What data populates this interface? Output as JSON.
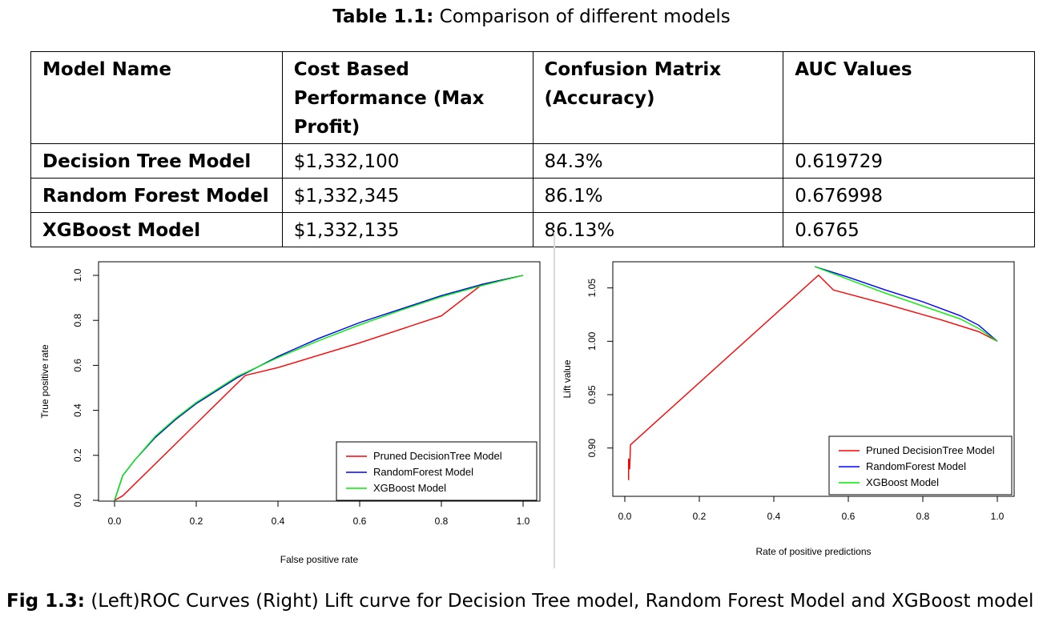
{
  "table": {
    "caption_label": "Table 1.1:",
    "caption_text": "Comparison of different models",
    "headers": [
      "Model Name",
      "Cost Based Performance (Max Profit)",
      "Confusion Matrix (Accuracy)",
      "AUC Values"
    ],
    "rows": [
      [
        "Decision Tree Model",
        "$1,332,100",
        "84.3%",
        "0.619729"
      ],
      [
        "Random Forest Model",
        "$1,332,345",
        "86.1%",
        "0.676998"
      ],
      [
        "XGBoost Model",
        "$1,332,135",
        "86.13%",
        "0.6765"
      ]
    ]
  },
  "figure": {
    "caption_label": "Fig 1.3:",
    "caption_text": "(Left)ROC Curves (Right) Lift curve for Decision Tree model, Random Forest Model and XGBoost model"
  },
  "chart_data": [
    {
      "type": "line",
      "title": "",
      "xlabel": "False positive rate",
      "ylabel": "True positive rate",
      "xlim": [
        0,
        1
      ],
      "ylim": [
        0,
        1
      ],
      "xticks": [
        "0.0",
        "0.2",
        "0.4",
        "0.6",
        "0.8",
        "1.0"
      ],
      "yticks": [
        "0.0",
        "0.2",
        "0.4",
        "0.6",
        "0.8",
        "1.0"
      ],
      "legend_position": "bottom-right",
      "series": [
        {
          "name": "Pruned DecisionTree Model",
          "color": "#ff0000",
          "x": [
            0,
            0.02,
            0.32,
            0.4,
            0.6,
            0.8,
            0.9,
            1.0
          ],
          "y": [
            0,
            0.02,
            0.555,
            0.59,
            0.7,
            0.82,
            0.96,
            1.0
          ]
        },
        {
          "name": "RandomForest Model",
          "color": "#0000ff",
          "x": [
            0,
            0.02,
            0.05,
            0.1,
            0.15,
            0.2,
            0.3,
            0.4,
            0.5,
            0.6,
            0.7,
            0.8,
            0.9,
            1.0
          ],
          "y": [
            0,
            0.11,
            0.18,
            0.28,
            0.36,
            0.43,
            0.545,
            0.64,
            0.72,
            0.79,
            0.85,
            0.91,
            0.96,
            1.0
          ]
        },
        {
          "name": "XGBoost Model",
          "color": "#00ee00",
          "x": [
            0,
            0.02,
            0.05,
            0.1,
            0.15,
            0.2,
            0.3,
            0.4,
            0.5,
            0.6,
            0.7,
            0.8,
            0.9,
            1.0
          ],
          "y": [
            0,
            0.11,
            0.18,
            0.285,
            0.365,
            0.435,
            0.55,
            0.635,
            0.71,
            0.78,
            0.845,
            0.905,
            0.955,
            1.0
          ]
        }
      ]
    },
    {
      "type": "line",
      "title": "",
      "xlabel": "Rate of positive predictions",
      "ylabel": "Lift value",
      "xlim": [
        0,
        1
      ],
      "ylim": [
        0.86,
        1.07
      ],
      "xticks": [
        "0.0",
        "0.2",
        "0.4",
        "0.6",
        "0.8",
        "1.0"
      ],
      "yticks": [
        "0.90",
        "0.95",
        "1.00",
        "1.05"
      ],
      "legend_position": "bottom-right",
      "series": [
        {
          "name": "Pruned DecisionTree Model",
          "color": "#ff0000",
          "x": [
            0.01,
            0.01,
            0.013,
            0.015,
            0.52,
            0.56,
            0.7,
            0.85,
            0.95,
            1.0
          ],
          "y": [
            0.87,
            0.89,
            0.88,
            0.903,
            1.062,
            1.048,
            1.035,
            1.02,
            1.009,
            1.0
          ]
        },
        {
          "name": "RandomForest Model",
          "color": "#0000ff",
          "x": [
            0.51,
            0.6,
            0.7,
            0.8,
            0.9,
            0.95,
            1.0
          ],
          "y": [
            1.07,
            1.06,
            1.048,
            1.037,
            1.024,
            1.015,
            1.0
          ]
        },
        {
          "name": "XGBoost Model",
          "color": "#00ee00",
          "x": [
            0.51,
            0.6,
            0.7,
            0.8,
            0.9,
            0.95,
            1.0
          ],
          "y": [
            1.07,
            1.058,
            1.045,
            1.033,
            1.021,
            1.012,
            1.0
          ]
        }
      ]
    }
  ]
}
